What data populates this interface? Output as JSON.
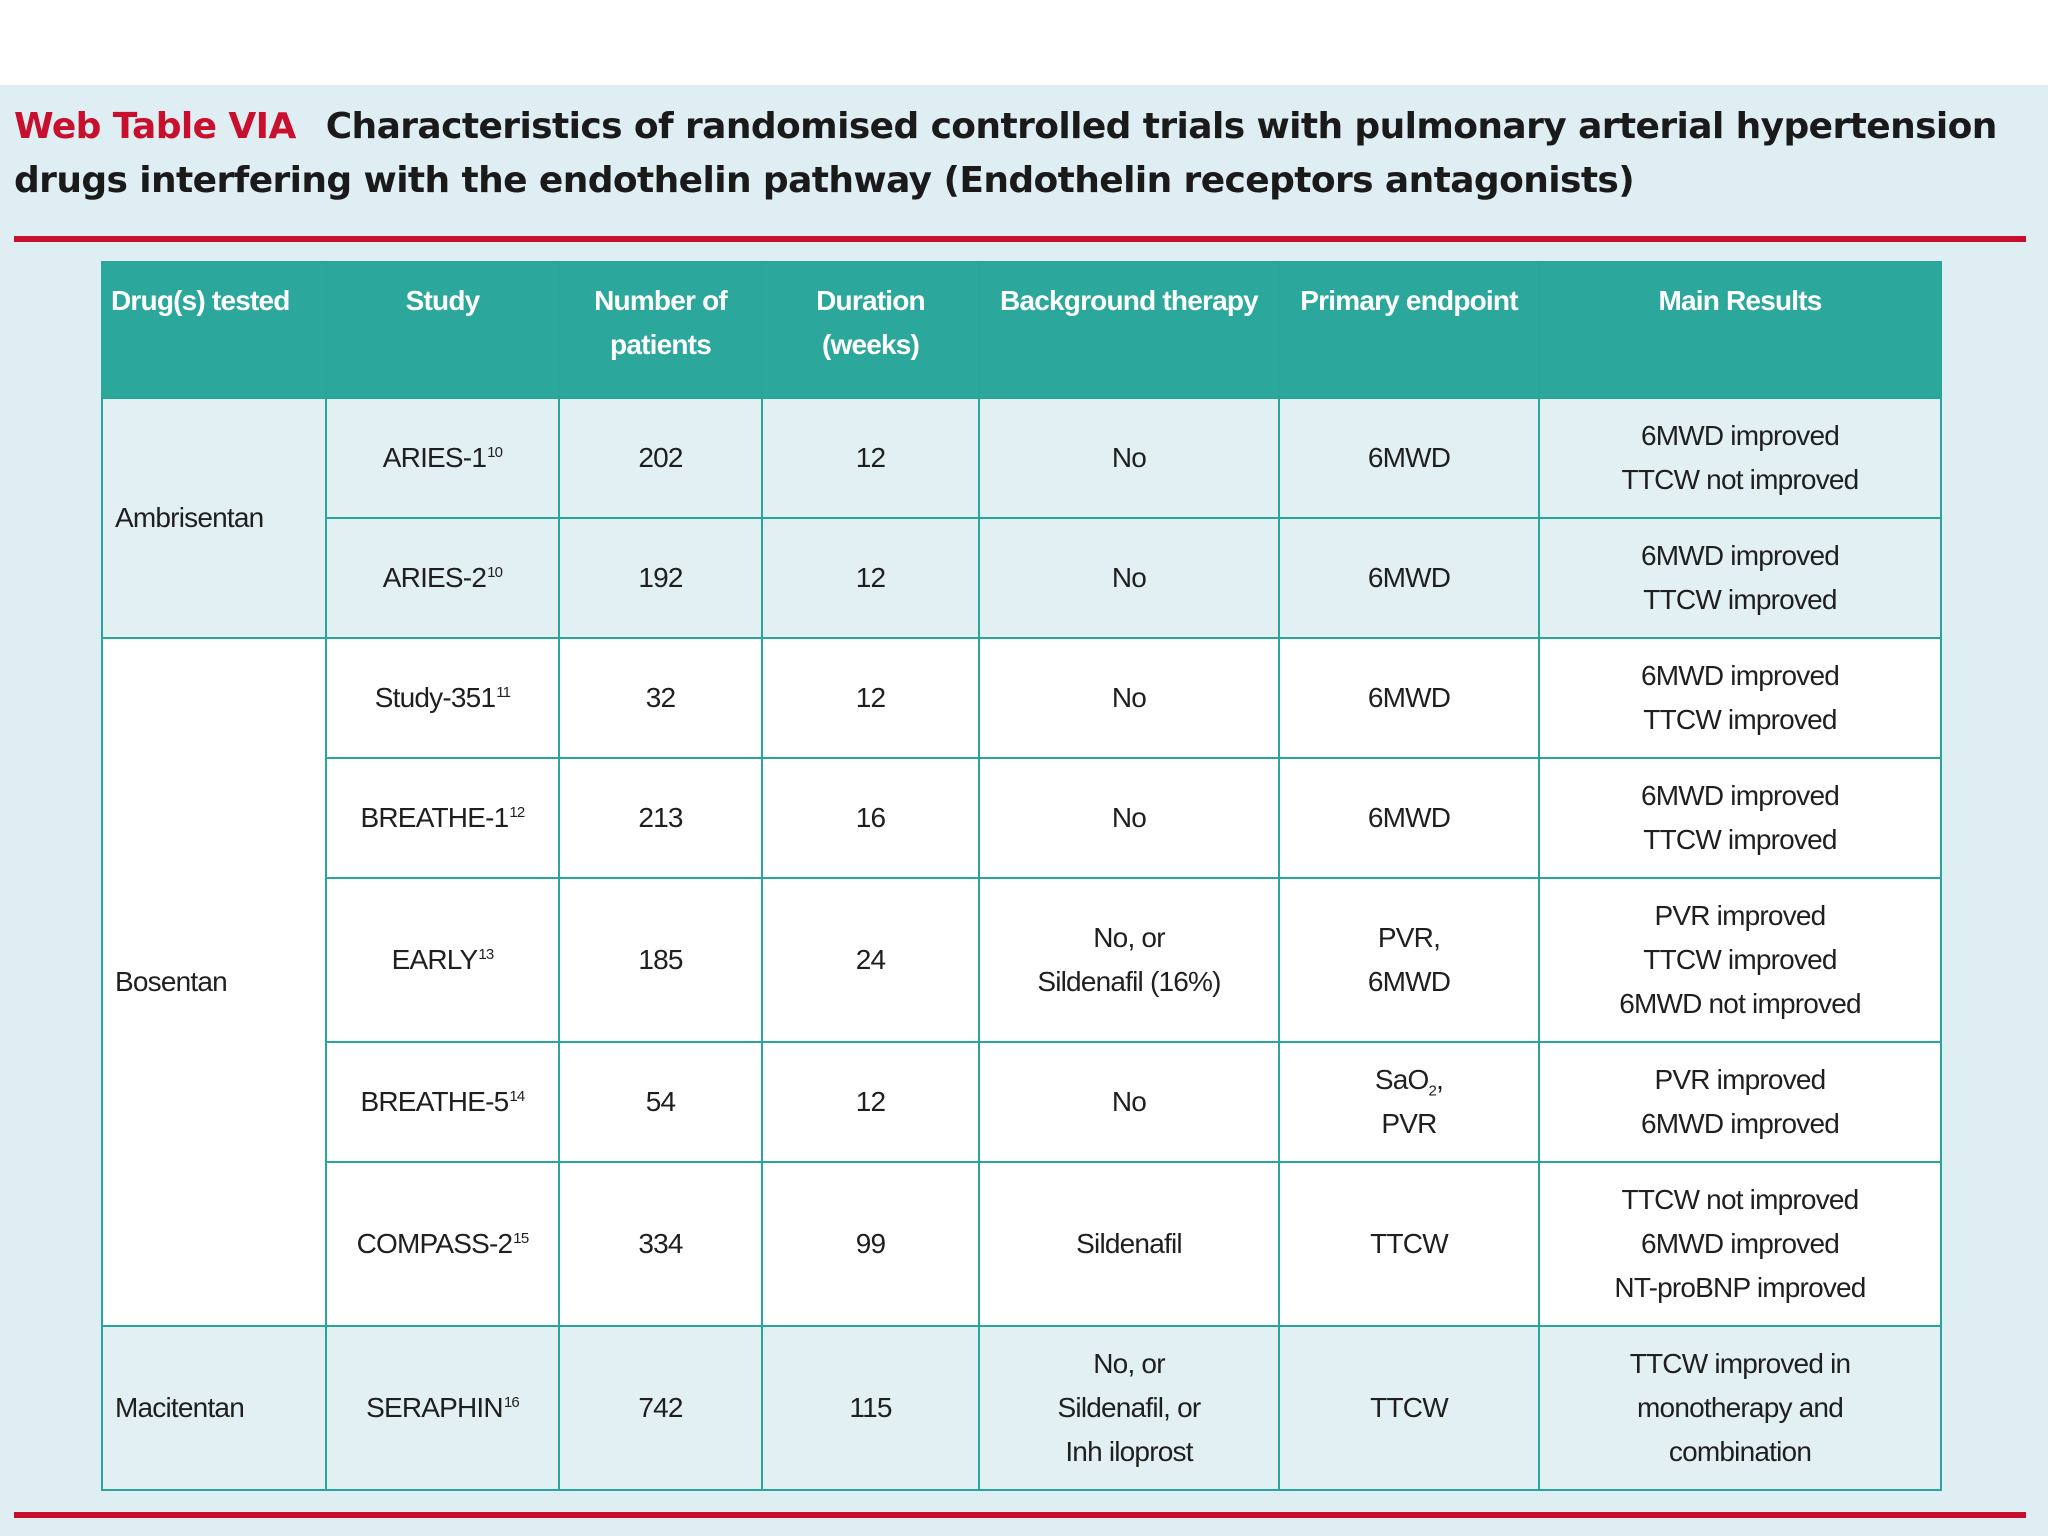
{
  "caption": {
    "label": "Web Table VIA",
    "title": "Characteristics of randomised controlled trials with pulmonary arterial hypertension drugs interfering with the endothelin pathway (Endothelin receptors antagonists)"
  },
  "table": {
    "headers": [
      "Drug(s) tested",
      "Study",
      "Number of patients",
      "Duration (weeks)",
      "Background therapy",
      "Primary endpoint",
      "Main Results"
    ],
    "groups": [
      {
        "drug": "Ambrisentan",
        "rows": [
          {
            "study": "ARIES-1",
            "ref": "10",
            "patients": "202",
            "duration": "12",
            "background": "No",
            "endpoint": "6MWD",
            "results": "6MWD improved\nTTCW not improved"
          },
          {
            "study": "ARIES-2",
            "ref": "10",
            "patients": "192",
            "duration": "12",
            "background": "No",
            "endpoint": "6MWD",
            "results": "6MWD improved\nTTCW improved"
          }
        ]
      },
      {
        "drug": "Bosentan",
        "rows": [
          {
            "study": "Study-351",
            "ref": "11",
            "patients": "32",
            "duration": "12",
            "background": "No",
            "endpoint": "6MWD",
            "results": "6MWD improved\nTTCW improved"
          },
          {
            "study": "BREATHE-1",
            "ref": "12",
            "patients": "213",
            "duration": "16",
            "background": "No",
            "endpoint": "6MWD",
            "results": "6MWD improved\nTTCW improved"
          },
          {
            "study": "EARLY",
            "ref": "13",
            "patients": "185",
            "duration": "24",
            "background": "No, or\nSildenafil (16%)",
            "endpoint": "PVR,\n6MWD",
            "results": "PVR improved\nTTCW improved\n6MWD not improved"
          },
          {
            "study": "BREATHE-5",
            "ref": "14",
            "patients": "54",
            "duration": "12",
            "background": "No",
            "endpoint": "SaO2,\nPVR",
            "results": "PVR improved\n6MWD improved"
          },
          {
            "study": "COMPASS-2",
            "ref": "15",
            "patients": "334",
            "duration": "99",
            "background": "Sildenafil",
            "endpoint": "TTCW",
            "results": "TTCW not improved\n6MWD improved\nNT-proBNP improved"
          }
        ]
      },
      {
        "drug": "Macitentan",
        "rows": [
          {
            "study": "SERAPHIN",
            "ref": "16",
            "patients": "742",
            "duration": "115",
            "background": "No, or\nSildenafil, or\nInh iloprost",
            "endpoint": "TTCW",
            "results": "TTCW improved in\nmonotherapy and\ncombination"
          }
        ]
      }
    ]
  }
}
